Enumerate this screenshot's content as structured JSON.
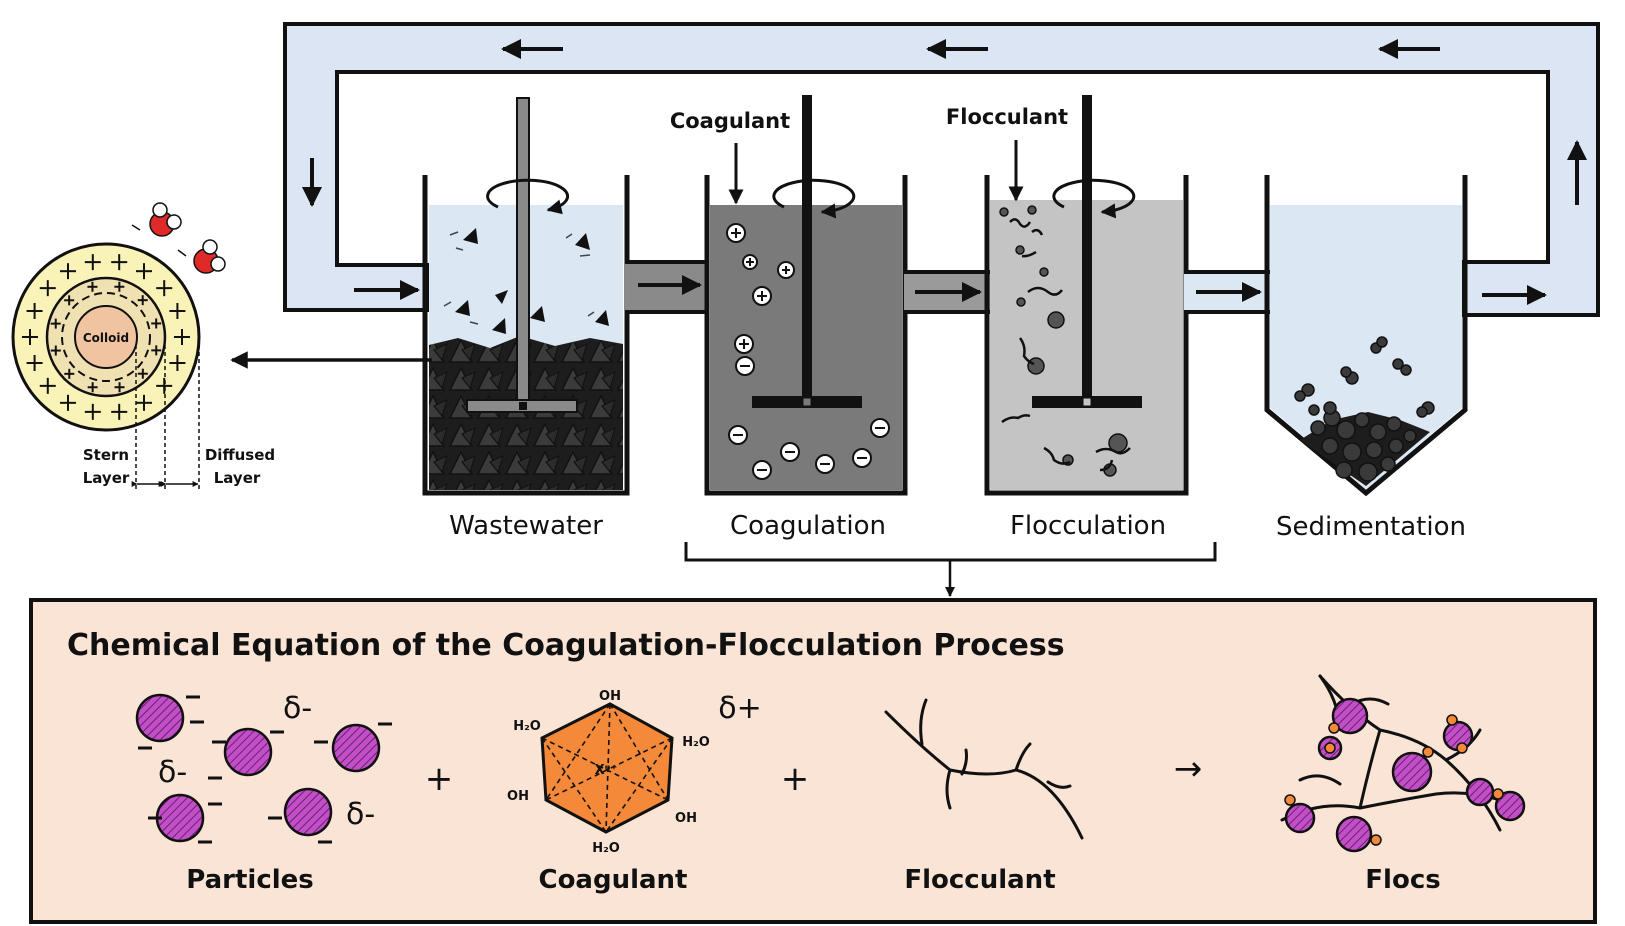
{
  "stages": {
    "wastewater": "Wastewater",
    "coagulation": "Coagulation",
    "flocculation": "Flocculation",
    "sedimentation": "Sedimentation"
  },
  "inputs": {
    "coagulant": "Coagulant",
    "flocculant": "Flocculant"
  },
  "colloid": {
    "core": "Colloid",
    "stern_line1": "Stern",
    "stern_line2": "Layer",
    "diffused_line1": "Diffused",
    "diffused_line2": "Layer"
  },
  "equation": {
    "title": "Chemical Equation of the Coagulation-Flocculation Process",
    "particles": "Particles",
    "coagulant": "Coagulant",
    "flocculant": "Flocculant",
    "flocs": "Flocs",
    "plus": "+",
    "arrow": "→",
    "delta_minus": "δ-",
    "delta_plus": "δ+",
    "oh": "OH",
    "h2o": "H₂O",
    "metal_ion": "Xⁿ⁺"
  },
  "colors": {
    "pipe": "#dbe5f3",
    "wastewater_water": "#dce7f4",
    "coagulation_water": "#7a7a7a",
    "flocculation_water": "#c4c4c4",
    "sedimentation_water": "#dce7f4",
    "equation_bg": "#f9e4d6",
    "particle": "#c24fc8",
    "coagulant_crystal": "#f5893a",
    "colloid_outer": "#faf3b8",
    "colloid_inner": "#f0e1b2",
    "colloid_core": "#f0c4a0",
    "water_oxygen": "#e02a2a"
  }
}
